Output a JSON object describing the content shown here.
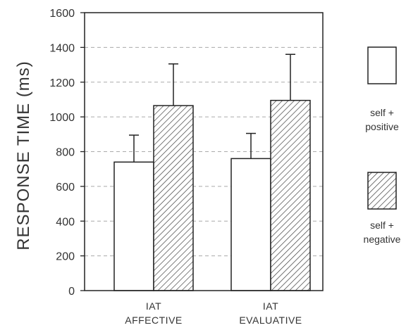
{
  "chart_data": {
    "type": "bar",
    "ylabel": "RESPONSE TIME (ms)",
    "ylim": [
      0,
      1600
    ],
    "yticks": [
      0,
      200,
      400,
      600,
      800,
      1000,
      1200,
      1400,
      1600
    ],
    "grid": "horizontal dashed",
    "categories": [
      [
        "IAT",
        "AFFECTIVE"
      ],
      [
        "IAT",
        "EVALUATIVE"
      ]
    ],
    "series": [
      {
        "name": "self + positive",
        "name_lines": [
          "self +",
          "positive"
        ],
        "fill": "plain",
        "values": [
          740,
          760
        ],
        "errors": [
          155,
          145
        ]
      },
      {
        "name": "self + negative",
        "name_lines": [
          "self +",
          "negative"
        ],
        "fill": "hatched",
        "values": [
          1065,
          1095
        ],
        "errors": [
          240,
          265
        ]
      }
    ],
    "legend_position": "right",
    "colors": {
      "axis": "#222222",
      "grid": "#aaaaaa",
      "hatch": "#333333",
      "bar_fill": "#ffffff"
    }
  }
}
